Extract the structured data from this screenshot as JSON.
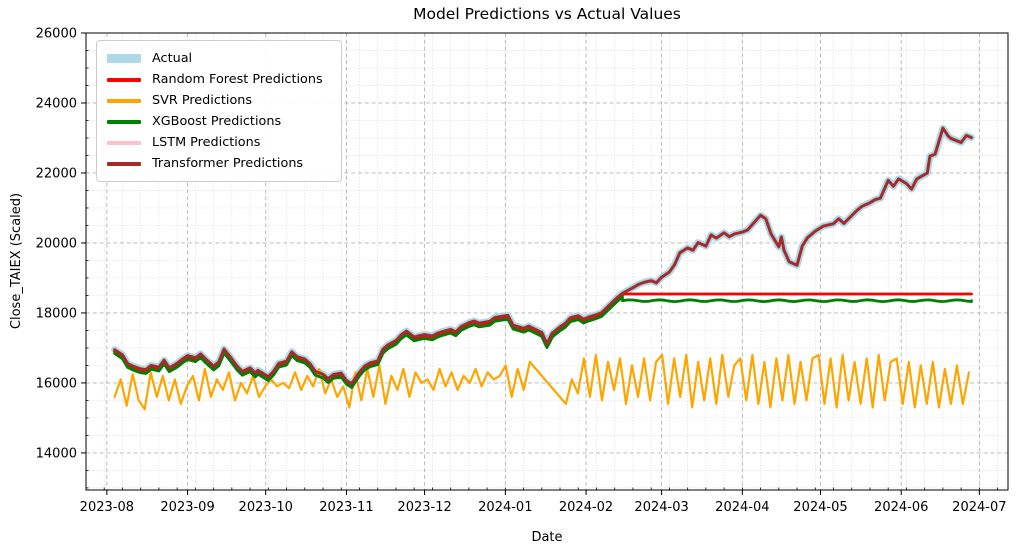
{
  "chart_data": {
    "type": "line",
    "title": "Model Predictions vs Actual Values",
    "xlabel": "Date",
    "ylabel": "Close_TAIEX (Scaled)",
    "grid": "major-dashed and minor-dotted, both axes",
    "legend_position": "upper-left",
    "colors": {
      "actual": "#ADD8E6",
      "random_forest": "#ff0000",
      "svr": "#ffa500",
      "xgboost": "#008000",
      "lstm": "#ffc0cb",
      "transformer": "#a52a2a"
    },
    "axes": {
      "xlim": [
        "2023-07-24",
        "2024-07-12"
      ],
      "ylim": [
        12940,
        26000
      ],
      "y_ticks": [
        14000,
        16000,
        18000,
        20000,
        22000,
        24000,
        26000
      ],
      "y_minor_step": 500,
      "x_ticks": [
        {
          "d": "2023-08-01",
          "label": "2023-08"
        },
        {
          "d": "2023-09-01",
          "label": "2023-09"
        },
        {
          "d": "2023-10-01",
          "label": "2023-10"
        },
        {
          "d": "2023-11-01",
          "label": "2023-11"
        },
        {
          "d": "2023-12-01",
          "label": "2023-12"
        },
        {
          "d": "2024-01-01",
          "label": "2024-01"
        },
        {
          "d": "2024-02-01",
          "label": "2024-02"
        },
        {
          "d": "2024-03-01",
          "label": "2024-03"
        },
        {
          "d": "2024-04-01",
          "label": "2024-04"
        },
        {
          "d": "2024-05-01",
          "label": "2024-05"
        },
        {
          "d": "2024-06-01",
          "label": "2024-06"
        },
        {
          "d": "2024-07-01",
          "label": "2024-07"
        }
      ],
      "x_minor_start": "2023-07-24",
      "x_minor_step_days": 7
    },
    "legend": [
      {
        "label": "Actual",
        "color": "#ADD8E6",
        "swatch_height": 9
      },
      {
        "label": "Random Forest Predictions",
        "color": "#ff0000",
        "swatch_height": 4
      },
      {
        "label": "SVR Predictions",
        "color": "#ffa500",
        "swatch_height": 4
      },
      {
        "label": "XGBoost Predictions",
        "color": "#008000",
        "swatch_height": 4
      },
      {
        "label": "LSTM Predictions",
        "color": "#ffc0cb",
        "swatch_height": 4
      },
      {
        "label": "Transformer Predictions",
        "color": "#a52a2a",
        "swatch_height": 4
      }
    ],
    "actual": [
      [
        "2023-08-04",
        16950
      ],
      [
        "2023-08-07",
        16800
      ],
      [
        "2023-08-09",
        16550
      ],
      [
        "2023-08-11",
        16480
      ],
      [
        "2023-08-14",
        16400
      ],
      [
        "2023-08-16",
        16380
      ],
      [
        "2023-08-18",
        16500
      ],
      [
        "2023-08-21",
        16450
      ],
      [
        "2023-08-23",
        16650
      ],
      [
        "2023-08-25",
        16430
      ],
      [
        "2023-08-28",
        16560
      ],
      [
        "2023-08-30",
        16680
      ],
      [
        "2023-09-01",
        16780
      ],
      [
        "2023-09-04",
        16720
      ],
      [
        "2023-09-06",
        16830
      ],
      [
        "2023-09-08",
        16680
      ],
      [
        "2023-09-11",
        16480
      ],
      [
        "2023-09-13",
        16600
      ],
      [
        "2023-09-15",
        16970
      ],
      [
        "2023-09-18",
        16680
      ],
      [
        "2023-09-20",
        16480
      ],
      [
        "2023-09-22",
        16330
      ],
      [
        "2023-09-25",
        16430
      ],
      [
        "2023-09-27",
        16280
      ],
      [
        "2023-09-28",
        16360
      ],
      [
        "2023-10-02",
        16180
      ],
      [
        "2023-10-04",
        16330
      ],
      [
        "2023-10-06",
        16560
      ],
      [
        "2023-10-09",
        16620
      ],
      [
        "2023-10-11",
        16890
      ],
      [
        "2023-10-13",
        16750
      ],
      [
        "2023-10-16",
        16680
      ],
      [
        "2023-10-18",
        16550
      ],
      [
        "2023-10-20",
        16330
      ],
      [
        "2023-10-23",
        16250
      ],
      [
        "2023-10-25",
        16120
      ],
      [
        "2023-10-27",
        16240
      ],
      [
        "2023-10-30",
        16280
      ],
      [
        "2023-11-01",
        16070
      ],
      [
        "2023-11-03",
        15980
      ],
      [
        "2023-11-06",
        16310
      ],
      [
        "2023-11-08",
        16480
      ],
      [
        "2023-11-10",
        16570
      ],
      [
        "2023-11-13",
        16630
      ],
      [
        "2023-11-15",
        16960
      ],
      [
        "2023-11-17",
        17090
      ],
      [
        "2023-11-20",
        17210
      ],
      [
        "2023-11-22",
        17370
      ],
      [
        "2023-11-24",
        17480
      ],
      [
        "2023-11-27",
        17310
      ],
      [
        "2023-11-29",
        17350
      ],
      [
        "2023-12-01",
        17380
      ],
      [
        "2023-12-04",
        17340
      ],
      [
        "2023-12-06",
        17420
      ],
      [
        "2023-12-08",
        17470
      ],
      [
        "2023-12-11",
        17530
      ],
      [
        "2023-12-13",
        17460
      ],
      [
        "2023-12-15",
        17610
      ],
      [
        "2023-12-18",
        17720
      ],
      [
        "2023-12-20",
        17770
      ],
      [
        "2023-12-22",
        17710
      ],
      [
        "2023-12-26",
        17760
      ],
      [
        "2023-12-28",
        17870
      ],
      [
        "2024-01-02",
        17930
      ],
      [
        "2024-01-04",
        17650
      ],
      [
        "2024-01-08",
        17560
      ],
      [
        "2024-01-10",
        17620
      ],
      [
        "2024-01-12",
        17550
      ],
      [
        "2024-01-15",
        17440
      ],
      [
        "2024-01-17",
        17120
      ],
      [
        "2024-01-19",
        17420
      ],
      [
        "2024-01-22",
        17600
      ],
      [
        "2024-01-24",
        17700
      ],
      [
        "2024-01-26",
        17860
      ],
      [
        "2024-01-29",
        17920
      ],
      [
        "2024-01-31",
        17820
      ],
      [
        "2024-02-02",
        17880
      ],
      [
        "2024-02-05",
        17950
      ],
      [
        "2024-02-07",
        18010
      ],
      [
        "2024-02-13",
        18440
      ],
      [
        "2024-02-15",
        18560
      ],
      [
        "2024-02-19",
        18720
      ],
      [
        "2024-02-21",
        18810
      ],
      [
        "2024-02-23",
        18870
      ],
      [
        "2024-02-26",
        18920
      ],
      [
        "2024-02-28",
        18860
      ],
      [
        "2024-03-01",
        19020
      ],
      [
        "2024-03-04",
        19170
      ],
      [
        "2024-03-06",
        19380
      ],
      [
        "2024-03-08",
        19720
      ],
      [
        "2024-03-11",
        19860
      ],
      [
        "2024-03-13",
        19790
      ],
      [
        "2024-03-15",
        20010
      ],
      [
        "2024-03-18",
        19910
      ],
      [
        "2024-03-20",
        20230
      ],
      [
        "2024-03-22",
        20140
      ],
      [
        "2024-03-25",
        20290
      ],
      [
        "2024-03-27",
        20180
      ],
      [
        "2024-03-29",
        20260
      ],
      [
        "2024-04-01",
        20310
      ],
      [
        "2024-04-03",
        20370
      ],
      [
        "2024-04-08",
        20790
      ],
      [
        "2024-04-10",
        20690
      ],
      [
        "2024-04-12",
        20260
      ],
      [
        "2024-04-15",
        19890
      ],
      [
        "2024-04-16",
        20170
      ],
      [
        "2024-04-17",
        19790
      ],
      [
        "2024-04-19",
        19460
      ],
      [
        "2024-04-22",
        19360
      ],
      [
        "2024-04-24",
        19910
      ],
      [
        "2024-04-26",
        20150
      ],
      [
        "2024-04-29",
        20340
      ],
      [
        "2024-05-02",
        20480
      ],
      [
        "2024-05-06",
        20550
      ],
      [
        "2024-05-08",
        20690
      ],
      [
        "2024-05-10",
        20560
      ],
      [
        "2024-05-15",
        20930
      ],
      [
        "2024-05-17",
        21050
      ],
      [
        "2024-05-20",
        21150
      ],
      [
        "2024-05-22",
        21240
      ],
      [
        "2024-05-24",
        21280
      ],
      [
        "2024-05-27",
        21790
      ],
      [
        "2024-05-29",
        21620
      ],
      [
        "2024-05-31",
        21830
      ],
      [
        "2024-06-03",
        21700
      ],
      [
        "2024-06-05",
        21540
      ],
      [
        "2024-06-07",
        21830
      ],
      [
        "2024-06-11",
        22000
      ],
      [
        "2024-06-12",
        22480
      ],
      [
        "2024-06-14",
        22540
      ],
      [
        "2024-06-17",
        23280
      ],
      [
        "2024-06-19",
        23060
      ],
      [
        "2024-06-20",
        22990
      ],
      [
        "2024-06-24",
        22870
      ],
      [
        "2024-06-26",
        23070
      ],
      [
        "2024-06-28",
        23010
      ]
    ],
    "models": [
      {
        "name": "random_forest",
        "label": "Random Forest Predictions",
        "color": "#ff0000",
        "width": 2.8,
        "mode": "follow_then_flat",
        "offset": -50,
        "flat_from": "2024-02-15",
        "flat_value": 18540,
        "wiggle_amp": 0,
        "wiggle_freq": 0
      },
      {
        "name": "svr",
        "label": "SVR Predictions",
        "color": "#ffa500",
        "width": 2.2,
        "mode": "explicit",
        "start": "2023-08-04",
        "end": "2024-06-27",
        "values": [
          15600,
          16100,
          15350,
          16250,
          15500,
          15250,
          16300,
          15600,
          16200,
          15500,
          16100,
          15400,
          15900,
          16200,
          15500,
          16400,
          15600,
          16100,
          15800,
          16300,
          15500,
          16000,
          15700,
          16200,
          15600,
          15900,
          16100,
          15900,
          16000,
          15850,
          16300,
          15800,
          16200,
          15900,
          16400,
          15700,
          16100,
          15600,
          15900,
          15300,
          16300,
          15500,
          16400,
          15600,
          16500,
          15400,
          16200,
          15800,
          16400,
          15600,
          16300,
          16000,
          16100,
          15800,
          16400,
          15900,
          16300,
          15800,
          16200,
          16000,
          16400,
          15900,
          16300,
          16100,
          16200,
          16500,
          15600,
          16400,
          15800,
          16600,
          16400,
          16200,
          16000,
          15800,
          15600,
          15400,
          16100,
          15700,
          16700,
          15600,
          16800,
          15500,
          16600,
          15800,
          16700,
          15400,
          16500,
          15600,
          16700,
          15500,
          16600,
          16800,
          15400,
          16700,
          15600,
          16800,
          15300,
          16600,
          15500,
          16700,
          15400,
          16800,
          15600,
          16500,
          16700,
          15500,
          16800,
          15400,
          16600,
          15300,
          16700,
          15500,
          16800,
          15400,
          16600,
          15500,
          16700,
          16800,
          15400,
          16700,
          15300,
          16800,
          15500,
          16600,
          15400,
          16700,
          15300,
          16800,
          15500,
          16600,
          16700,
          15400,
          16600,
          15300,
          16500,
          15400,
          16600,
          15300,
          16400,
          15400,
          16500,
          15400,
          16300
        ]
      },
      {
        "name": "xgboost",
        "label": "XGBoost Predictions",
        "color": "#008000",
        "width": 2.8,
        "mode": "follow_then_flat",
        "offset": -110,
        "flat_from": "2024-02-15",
        "flat_value": 18350,
        "wiggle_amp": 25,
        "wiggle_freq": 1.1
      },
      {
        "name": "lstm",
        "label": "LSTM Predictions",
        "color": "#ffc0cb",
        "width": 2.5,
        "mode": "follow",
        "offset": 0
      },
      {
        "name": "transformer",
        "label": "Transformer Predictions",
        "color": "#a52a2a",
        "width": 3,
        "mode": "follow",
        "offset": 0
      }
    ],
    "actual_style": {
      "width": 7
    }
  },
  "layout_note": "static matplotlib figure"
}
